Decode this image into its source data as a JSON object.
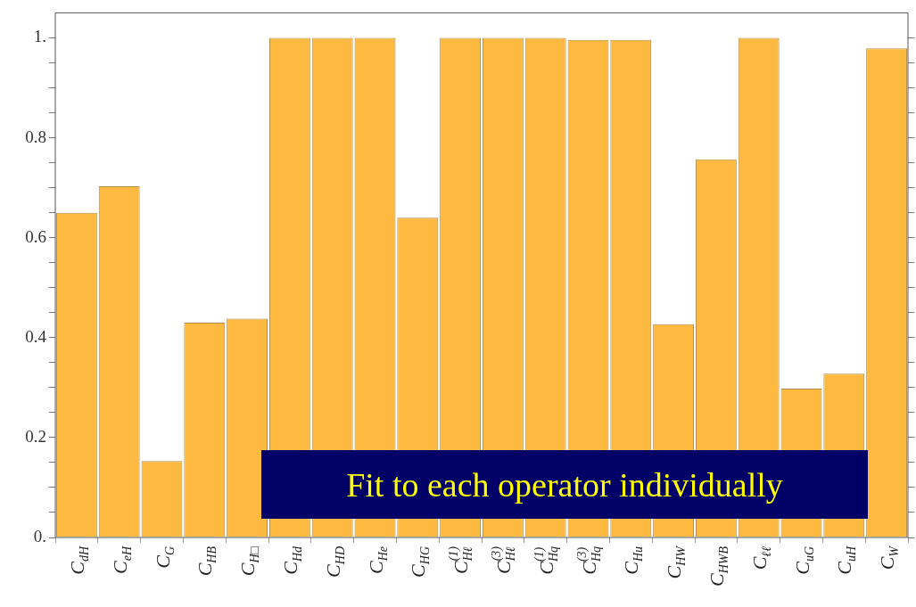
{
  "chart_data": {
    "type": "bar",
    "categories": [
      "C$_{dH}$",
      "C$_{eH}$",
      "C$_{G}$",
      "C$_{HB}$",
      "C$_{H□}$",
      "C$_{Hd}$",
      "C$_{HD}$",
      "C$_{He}$",
      "C$_{HG}$",
      "C$^{(1)}$$_{Hℓ}$",
      "C$^{(3)}$$_{Hℓ}$",
      "C$^{(1)}$$_{Hq}$",
      "C$^{(3)}$$_{Hq}$",
      "C$_{Hu}$",
      "C$_{HW}$",
      "C$_{HWB}$",
      "C$_{ℓℓ}$",
      "C$_{uG}$",
      "C$_{uH}$",
      "C$_{W}$"
    ],
    "values": [
      0.65,
      0.703,
      0.153,
      0.43,
      0.438,
      1.0,
      1.0,
      1.0,
      0.64,
      1.0,
      1.0,
      1.0,
      0.996,
      0.996,
      0.427,
      0.757,
      1.0,
      0.298,
      0.328,
      0.979
    ],
    "color": "#fdb940",
    "ylim": [
      0,
      1.05
    ],
    "yticks": [
      {
        "value": 0,
        "label": "0."
      },
      {
        "value": 0.05,
        "label": null
      },
      {
        "value": 0.1,
        "label": null
      },
      {
        "value": 0.15,
        "label": null
      },
      0.2,
      {
        "value": 0.25,
        "label": null
      },
      {
        "value": 0.3,
        "label": null
      },
      {
        "value": 0.35,
        "label": null
      },
      0.4,
      {
        "value": 0.45,
        "label": null
      },
      {
        "value": 0.5,
        "label": null
      },
      {
        "value": 0.55,
        "label": null
      },
      0.6,
      {
        "value": 0.65,
        "label": null
      },
      {
        "value": 0.7,
        "label": null
      },
      {
        "value": 0.75,
        "label": null
      },
      0.8,
      {
        "value": 0.85,
        "label": null
      },
      {
        "value": 0.9,
        "label": null
      },
      {
        "value": 0.95,
        "label": null
      },
      {
        "value": 1,
        "label": "1."
      }
    ],
    "grid": false,
    "legend": false,
    "annotations": [
      "Fit to each operator individually"
    ]
  }
}
